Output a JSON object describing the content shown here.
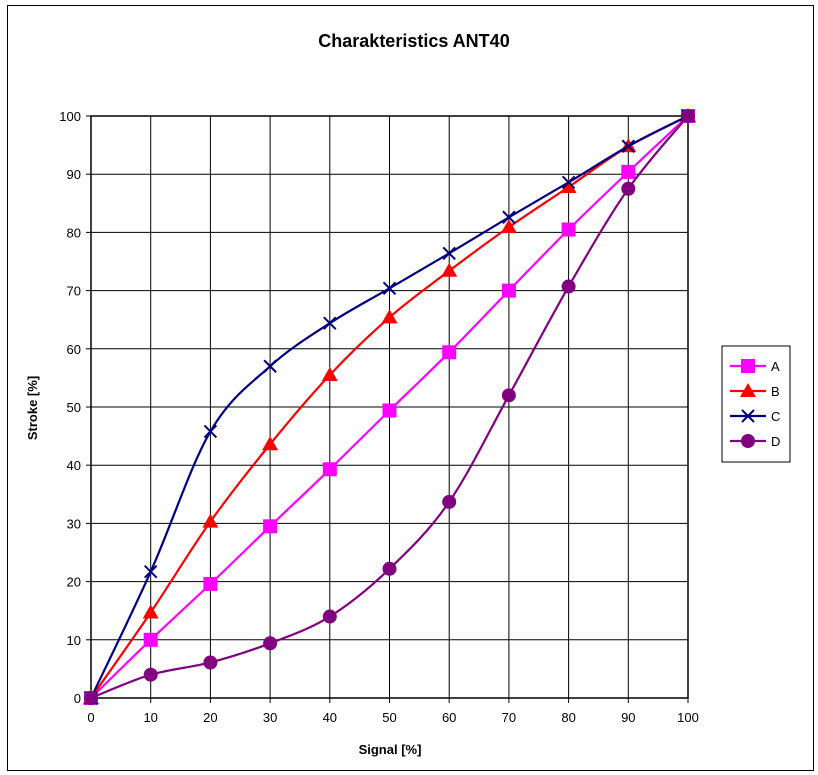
{
  "chart_data": {
    "type": "line",
    "title": "Charakteristics ANT40",
    "xlabel": "Signal [%]",
    "ylabel": "Stroke [%]",
    "xlim": [
      0,
      100
    ],
    "ylim": [
      0,
      100
    ],
    "x_ticks": [
      "0",
      "10",
      "20",
      "30",
      "40",
      "50",
      "60",
      "70",
      "80",
      "90",
      "100"
    ],
    "y_ticks": [
      "0",
      "10",
      "20",
      "30",
      "40",
      "50",
      "60",
      "70",
      "80",
      "90",
      "100"
    ],
    "grid": true,
    "legend_position": "right",
    "x": [
      0,
      10,
      20,
      30,
      40,
      50,
      60,
      70,
      80,
      90,
      100
    ],
    "series": [
      {
        "name": "A",
        "color": "#ff00ff",
        "marker": "square",
        "values": [
          0,
          10,
          19.6,
          29.5,
          39.3,
          49.4,
          59.4,
          70,
          80.5,
          90.4,
          100
        ]
      },
      {
        "name": "B",
        "color": "#ff0000",
        "marker": "triangle",
        "values": [
          0,
          14.7,
          30.3,
          43.6,
          55.5,
          65.4,
          73.4,
          80.9,
          87.8,
          94.8,
          100
        ]
      },
      {
        "name": "C",
        "color": "#000080",
        "marker": "x",
        "values": [
          0,
          21.7,
          45.8,
          57,
          64.4,
          70.4,
          76.4,
          82.6,
          88.6,
          94.8,
          100
        ]
      },
      {
        "name": "D",
        "color": "#800080",
        "marker": "circle",
        "values": [
          0,
          4,
          6.1,
          9.4,
          14,
          22.2,
          33.7,
          52,
          70.7,
          87.5,
          100
        ]
      }
    ]
  }
}
